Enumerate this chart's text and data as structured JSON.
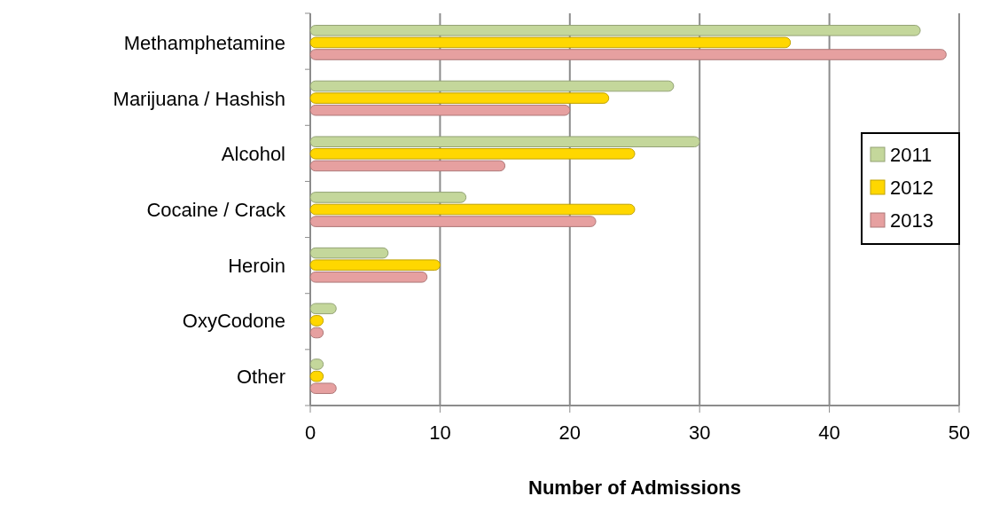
{
  "chart_data": {
    "type": "bar",
    "orientation": "horizontal",
    "xlabel": "Number of Admissions",
    "categories": [
      "Methamphetamine",
      "Marijuana / Hashish",
      "Alcohol",
      "Cocaine / Crack",
      "Heroin",
      "OxyCodone",
      "Other"
    ],
    "series": [
      {
        "name": "2011",
        "color": "#c4d79b",
        "values": [
          47,
          28,
          30,
          12,
          6,
          2,
          1
        ]
      },
      {
        "name": "2012",
        "color": "#ffd700",
        "values": [
          37,
          23,
          25,
          25,
          10,
          1,
          1
        ]
      },
      {
        "name": "2013",
        "color": "#e6a0a0",
        "values": [
          49,
          20,
          15,
          22,
          9,
          1,
          2
        ]
      }
    ],
    "xlim": [
      0,
      50
    ],
    "xticks": [
      0,
      10,
      20,
      30,
      40,
      50
    ],
    "grid": "x",
    "legend": "right"
  }
}
